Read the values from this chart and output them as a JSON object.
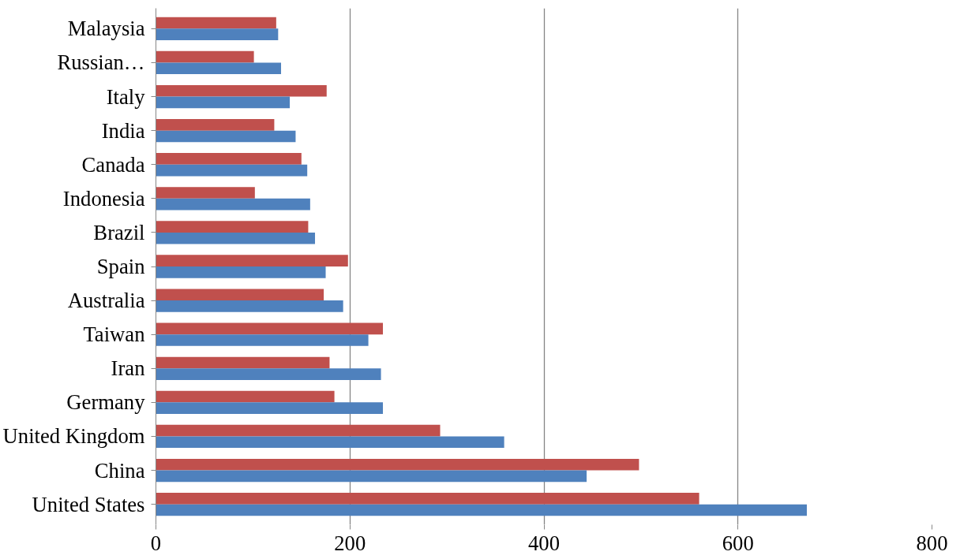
{
  "chart_data": {
    "type": "bar",
    "orientation": "horizontal",
    "categories": [
      "Malaysia",
      "Russian…",
      "Italy",
      "India",
      "Canada",
      "Indonesia",
      "Brazil",
      "Spain",
      "Australia",
      "Taiwan",
      "Iran",
      "Germany",
      "United Kingdom",
      "China",
      "United States"
    ],
    "series": [
      {
        "color": "#c0504d",
        "values": [
          124,
          101,
          176,
          122,
          150,
          102,
          157,
          198,
          173,
          234,
          179,
          184,
          293,
          498,
          560
        ]
      },
      {
        "color": "#4f81bd",
        "values": [
          126,
          129,
          138,
          144,
          156,
          159,
          164,
          175,
          193,
          219,
          232,
          234,
          359,
          444,
          671
        ]
      }
    ],
    "xlim": [
      0,
      800
    ],
    "xticks": [
      0,
      200,
      400,
      600,
      800
    ],
    "grid": "x"
  }
}
